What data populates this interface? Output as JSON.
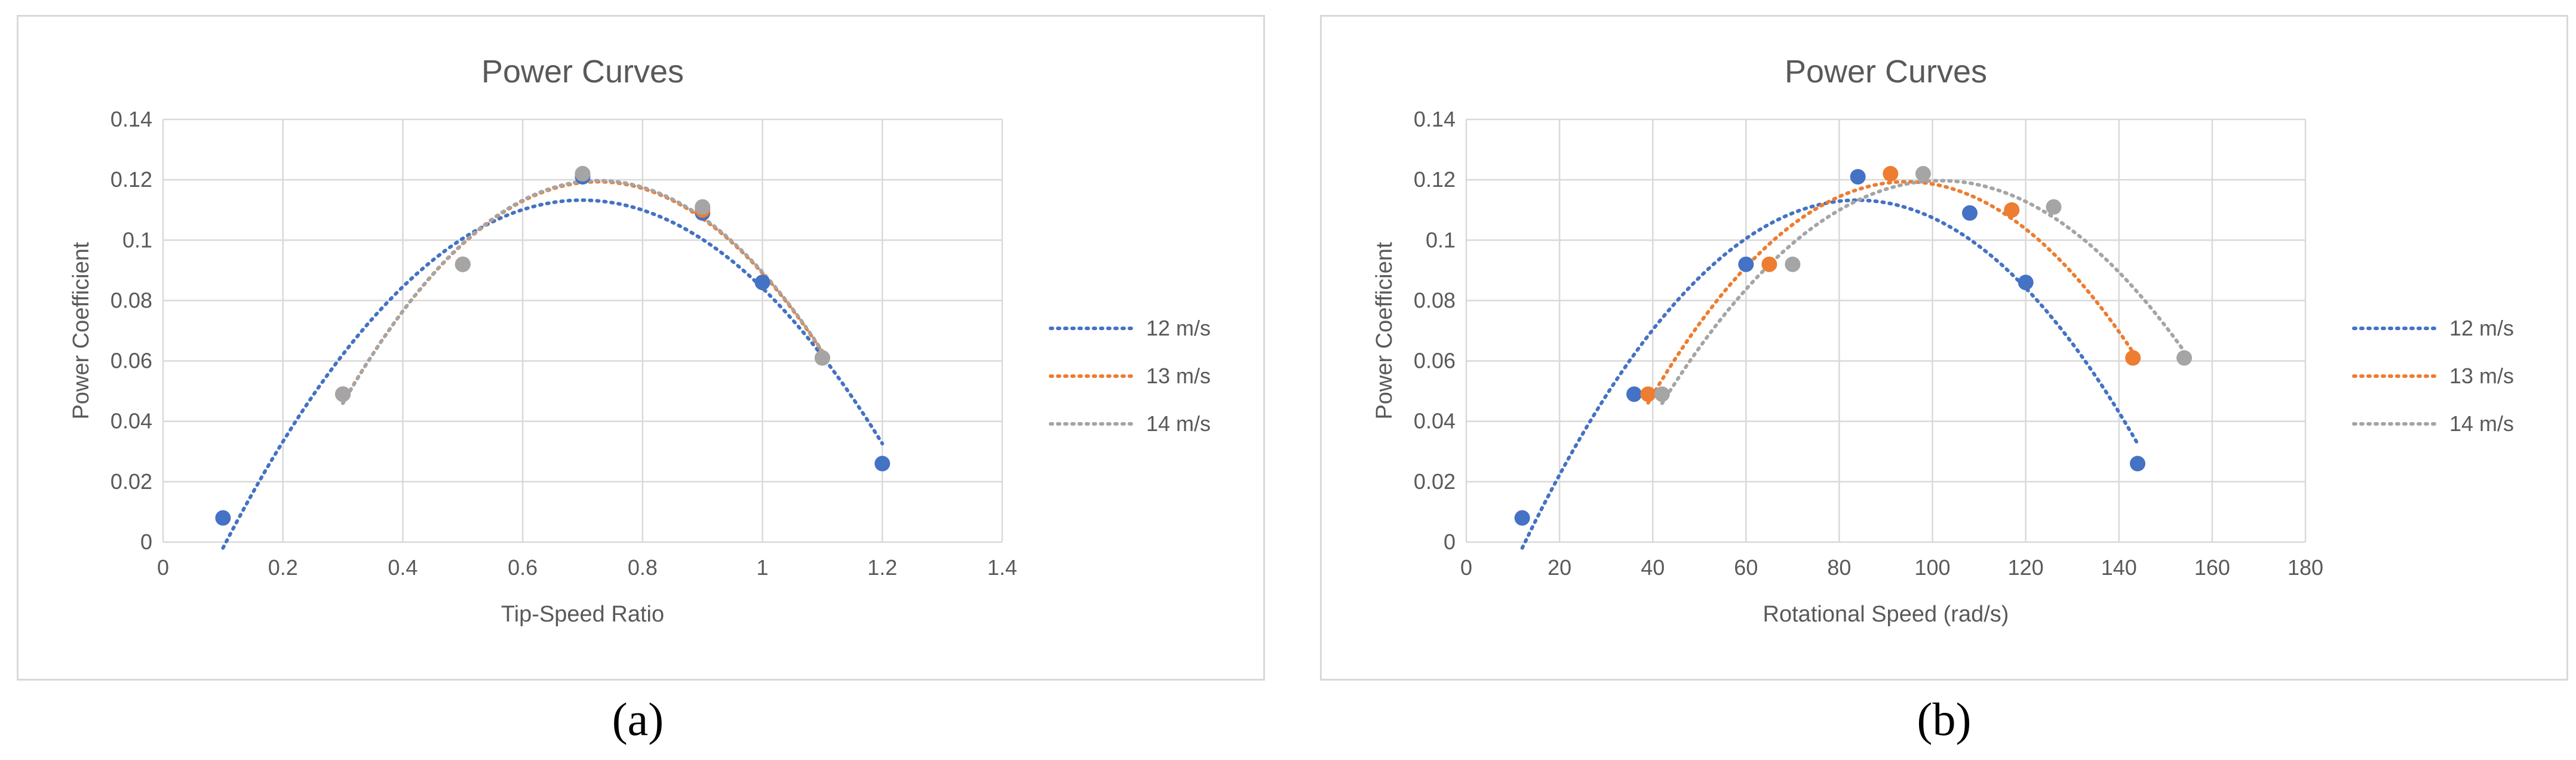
{
  "chart_data": [
    {
      "type": "scatter",
      "panel_label": "(a)",
      "title": "Power Curves",
      "xlabel": "Tip-Speed Ratio",
      "ylabel": "Power Coefficient",
      "xlim": [
        0,
        1.4
      ],
      "ylim": [
        0,
        0.14
      ],
      "xticks": [
        "0",
        "0.2",
        "0.4",
        "0.6",
        "0.8",
        "1",
        "1.2",
        "1.4"
      ],
      "yticks": [
        "0",
        "0.02",
        "0.04",
        "0.06",
        "0.08",
        "0.1",
        "0.12",
        "0.14"
      ],
      "grid": true,
      "legend_position": "right",
      "trendline": "polynomial",
      "series": [
        {
          "name": "12 m/s",
          "color": "#4472C4",
          "x": [
            0.1,
            0.3,
            0.5,
            0.7,
            0.9,
            1.0,
            1.2
          ],
          "y": [
            0.008,
            0.049,
            0.092,
            0.121,
            0.109,
            0.086,
            0.026
          ]
        },
        {
          "name": "13 m/s",
          "color": "#ED7D31",
          "x": [
            0.3,
            0.5,
            0.7,
            0.9,
            1.1
          ],
          "y": [
            0.049,
            0.092,
            0.122,
            0.11,
            0.061
          ]
        },
        {
          "name": "14 m/s",
          "color": "#A5A5A5",
          "x": [
            0.3,
            0.5,
            0.7,
            0.9,
            1.1
          ],
          "y": [
            0.049,
            0.092,
            0.122,
            0.111,
            0.061
          ]
        }
      ]
    },
    {
      "type": "scatter",
      "panel_label": "(b)",
      "title": "Power Curves",
      "xlabel": "Rotational Speed (rad/s)",
      "ylabel": "Power Coefficient",
      "xlim": [
        0,
        180
      ],
      "ylim": [
        0,
        0.14
      ],
      "xticks": [
        "0",
        "20",
        "40",
        "60",
        "80",
        "100",
        "120",
        "140",
        "160",
        "180"
      ],
      "yticks": [
        "0",
        "0.02",
        "0.04",
        "0.06",
        "0.08",
        "0.1",
        "0.12",
        "0.14"
      ],
      "grid": true,
      "legend_position": "right",
      "trendline": "polynomial",
      "series": [
        {
          "name": "12 m/s",
          "color": "#4472C4",
          "x": [
            12,
            36,
            60,
            84,
            108,
            120,
            144
          ],
          "y": [
            0.008,
            0.049,
            0.092,
            0.121,
            0.109,
            0.086,
            0.026
          ]
        },
        {
          "name": "13 m/s",
          "color": "#ED7D31",
          "x": [
            39,
            65,
            91,
            117,
            143
          ],
          "y": [
            0.049,
            0.092,
            0.122,
            0.11,
            0.061
          ]
        },
        {
          "name": "14 m/s",
          "color": "#A5A5A5",
          "x": [
            42,
            70,
            98,
            126,
            154
          ],
          "y": [
            0.049,
            0.092,
            0.122,
            0.111,
            0.061
          ]
        }
      ]
    }
  ]
}
